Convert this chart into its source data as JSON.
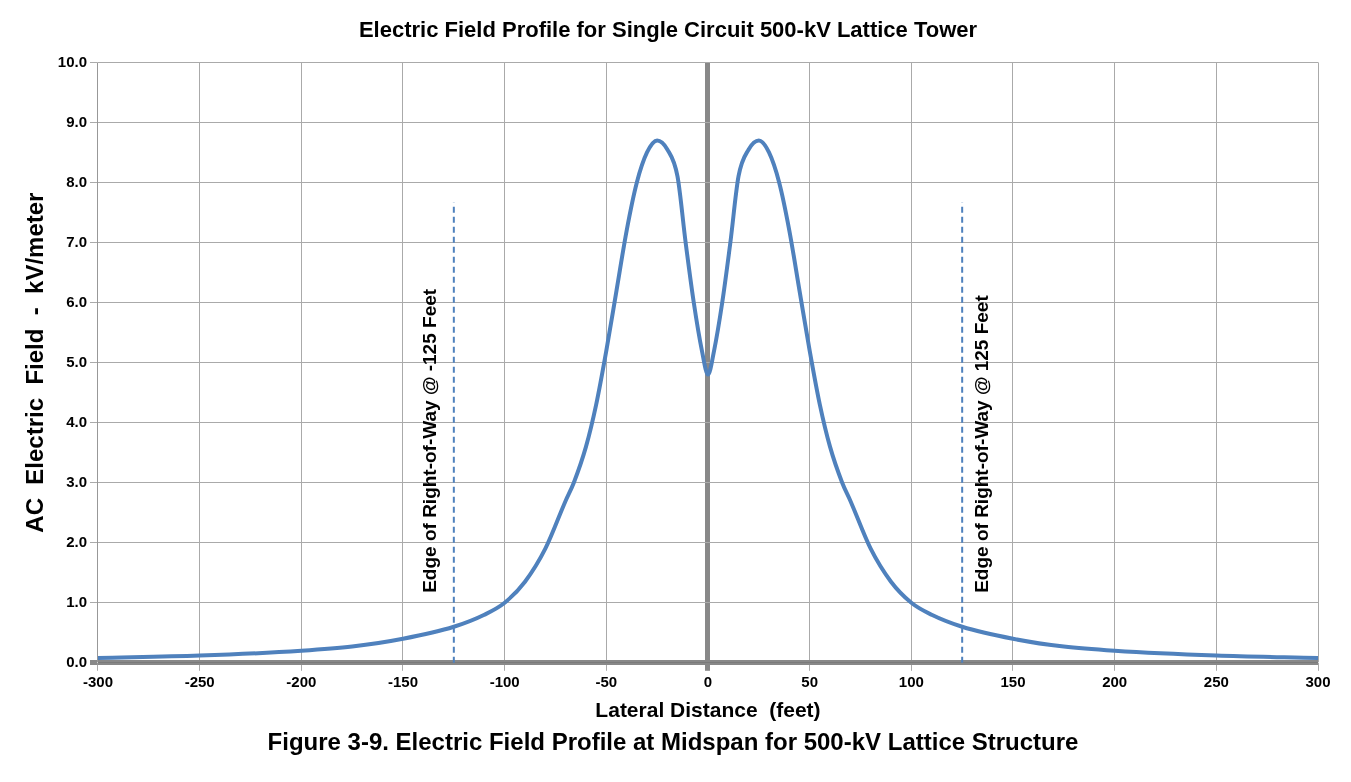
{
  "chart_data": {
    "type": "line",
    "title": "Electric Field Profile for Single Circuit 500-kV Lattice Tower",
    "xlabel": "Lateral Distance  (feet)",
    "ylabel": "AC  Electric  Field  -  kV/meter",
    "annotations": [
      "Figure 3-9. Electric Field Profile at Midspan for 500-kV Lattice Structure"
    ],
    "x": [
      -300,
      -250,
      -200,
      -175,
      -150,
      -125,
      -110,
      -100,
      -90,
      -80,
      -70,
      -66,
      -60,
      -55,
      -50,
      -45,
      -40,
      -35,
      -30,
      -25,
      -20,
      -15,
      -11,
      -7,
      -3,
      0,
      3,
      7,
      11,
      15,
      20,
      25,
      30,
      35,
      40,
      45,
      50,
      55,
      60,
      66,
      70,
      80,
      90,
      100,
      110,
      125,
      150,
      175,
      200,
      250,
      300
    ],
    "series": [
      {
        "color": "#4f81bd",
        "values": [
          0.08,
          0.12,
          0.2,
          0.27,
          0.4,
          0.6,
          0.8,
          1.0,
          1.35,
          1.9,
          2.7,
          3.0,
          3.6,
          4.3,
          5.2,
          6.2,
          7.2,
          8.0,
          8.5,
          8.7,
          8.55,
          8.1,
          7.0,
          6.0,
          5.2,
          4.8,
          5.2,
          6.0,
          7.0,
          8.1,
          8.55,
          8.7,
          8.5,
          8.0,
          7.2,
          6.2,
          5.2,
          4.3,
          3.6,
          3.0,
          2.7,
          1.9,
          1.35,
          1.0,
          0.8,
          0.6,
          0.4,
          0.27,
          0.2,
          0.12,
          0.08
        ]
      }
    ],
    "xlim": [
      -300,
      300
    ],
    "xticks": [
      -300,
      -250,
      -200,
      -150,
      -100,
      -50,
      0,
      50,
      100,
      150,
      200,
      250,
      300
    ],
    "ylim": [
      0,
      10
    ],
    "yticks": [
      {
        "value": 0,
        "label": "0.0"
      },
      {
        "value": 1,
        "label": "1.0"
      },
      {
        "value": 2,
        "label": "2.0"
      },
      {
        "value": 3,
        "label": "3.0"
      },
      {
        "value": 4,
        "label": "4.0"
      },
      {
        "value": 5,
        "label": "5.0"
      },
      {
        "value": 6,
        "label": "6.0"
      },
      {
        "value": 7,
        "label": "7.0"
      },
      {
        "value": 8,
        "label": "8.0"
      },
      {
        "value": 9,
        "label": "9.0"
      },
      {
        "value": 10,
        "label": "10.0"
      }
    ],
    "ref_lines": [
      {
        "axis": "x",
        "value": -125,
        "label": "Edge of Right-of-Way @ -125 Feet",
        "color": "#4f81bd",
        "line_style": "dashed"
      },
      {
        "axis": "x",
        "value": 125,
        "label": "Edge of Right-of-Way @ 125 Feet",
        "color": "#4f81bd",
        "line_style": "dashed"
      }
    ],
    "grid": true,
    "legend": false,
    "marker": "none",
    "line_style": "solid"
  }
}
